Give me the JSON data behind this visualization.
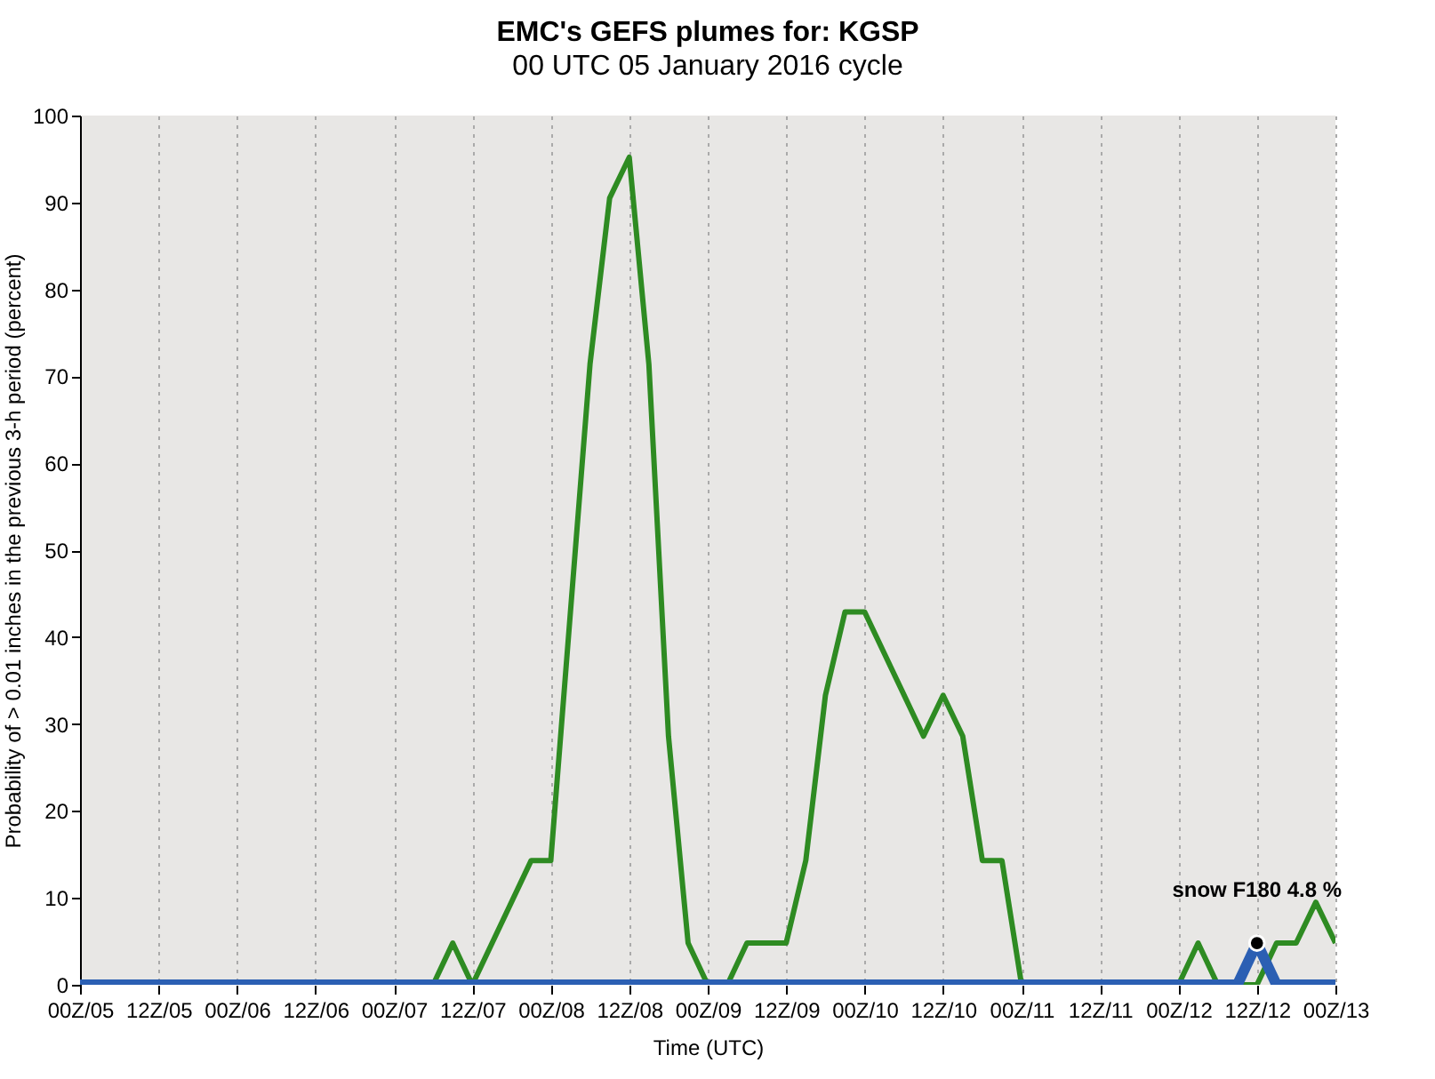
{
  "chart_data": {
    "type": "line",
    "title": "EMC's GEFS plumes for: KGSP",
    "subtitle": "00 UTC 05 January 2016 cycle",
    "xlabel": "Time (UTC)",
    "ylabel": "Probability of > 0.01 inches in the previous 3-h period (percent)",
    "xlim": [
      "2016-01-05T00:00",
      "2016-01-13T00:00"
    ],
    "xticks": [
      {
        "value": "2016-01-05T00:00",
        "label": "00Z/05"
      },
      {
        "value": "2016-01-05T12:00",
        "label": "12Z/05"
      },
      {
        "value": "2016-01-06T00:00",
        "label": "00Z/06"
      },
      {
        "value": "2016-01-06T12:00",
        "label": "12Z/06"
      },
      {
        "value": "2016-01-07T00:00",
        "label": "00Z/07"
      },
      {
        "value": "2016-01-07T12:00",
        "label": "12Z/07"
      },
      {
        "value": "2016-01-08T00:00",
        "label": "00Z/08"
      },
      {
        "value": "2016-01-08T12:00",
        "label": "12Z/08"
      },
      {
        "value": "2016-01-09T00:00",
        "label": "00Z/09"
      },
      {
        "value": "2016-01-09T12:00",
        "label": "12Z/09"
      },
      {
        "value": "2016-01-10T00:00",
        "label": "00Z/10"
      },
      {
        "value": "2016-01-10T12:00",
        "label": "12Z/10"
      },
      {
        "value": "2016-01-11T00:00",
        "label": "00Z/11"
      },
      {
        "value": "2016-01-11T12:00",
        "label": "12Z/11"
      },
      {
        "value": "2016-01-12T00:00",
        "label": "00Z/12"
      },
      {
        "value": "2016-01-12T12:00",
        "label": "12Z/12"
      },
      {
        "value": "2016-01-13T00:00",
        "label": "00Z/13"
      }
    ],
    "ylim": [
      0,
      100
    ],
    "yticks": [
      0,
      10,
      20,
      30,
      40,
      50,
      60,
      70,
      80,
      90,
      100
    ],
    "grid": "x",
    "marker": "none",
    "line_style": "solid",
    "series": [
      {
        "color": "#2e8b22",
        "x": [
          "2016-01-05T00:00",
          "2016-01-07T06:00",
          "2016-01-07T09:00",
          "2016-01-07T12:00",
          "2016-01-07T21:00",
          "2016-01-08T00:00",
          "2016-01-08T06:00",
          "2016-01-08T09:00",
          "2016-01-08T12:00",
          "2016-01-08T15:00",
          "2016-01-08T18:00",
          "2016-01-08T21:00",
          "2016-01-09T00:00",
          "2016-01-09T03:00",
          "2016-01-09T06:00",
          "2016-01-09T12:00",
          "2016-01-09T15:00",
          "2016-01-09T18:00",
          "2016-01-09T21:00",
          "2016-01-10T00:00",
          "2016-01-10T09:00",
          "2016-01-10T12:00",
          "2016-01-10T15:00",
          "2016-01-10T18:00",
          "2016-01-10T21:00",
          "2016-01-11T00:00",
          "2016-01-12T00:00",
          "2016-01-12T03:00",
          "2016-01-12T06:00",
          "2016-01-12T12:00",
          "2016-01-12T15:00",
          "2016-01-12T18:00",
          "2016-01-12T21:00",
          "2016-01-13T00:00"
        ],
        "values": [
          0,
          0,
          4.8,
          0,
          14.3,
          14.3,
          71.4,
          90.5,
          95.2,
          71.4,
          28.6,
          4.8,
          0,
          0,
          4.8,
          4.8,
          14.3,
          33.3,
          42.9,
          42.9,
          28.6,
          33.3,
          28.6,
          14.3,
          14.3,
          0,
          0,
          4.8,
          0,
          0,
          4.8,
          4.8,
          9.5,
          4.8
        ]
      },
      {
        "color": "#2b5fb3",
        "x": [
          "2016-01-05T00:00",
          "2016-01-12T09:00",
          "2016-01-12T12:00",
          "2016-01-12T15:00",
          "2016-01-13T00:00"
        ],
        "values": [
          0,
          0,
          4.8,
          0,
          0
        ]
      },
      {
        "type": "scatter",
        "marker": "circle",
        "color": "#000000",
        "x": [
          "2016-01-12T12:00"
        ],
        "values": [
          4.8
        ]
      }
    ],
    "annotations": [
      {
        "text": "snow F180 4.8 %",
        "x": "2016-01-12T12:00",
        "y": 4.8
      }
    ]
  }
}
